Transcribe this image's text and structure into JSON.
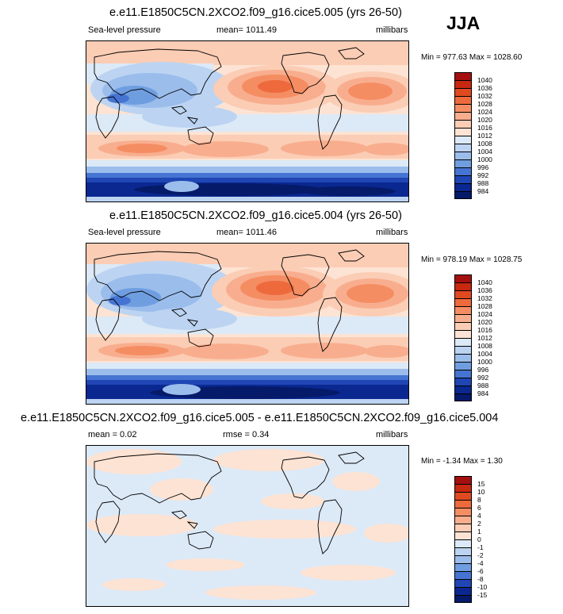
{
  "season": "JJA",
  "chart_data": [
    {
      "type": "heatmap",
      "title": "e.e11.E1850C5CN.2XCO2.f09_g16.cice5.005 (yrs 26-50)",
      "left_label": "Sea-level pressure",
      "center_label": "mean= 1011.49",
      "units": "millibars",
      "min_max": "Min = 977.63 Max = 1028.60",
      "levels": [
        "1040",
        "1036",
        "1032",
        "1028",
        "1024",
        "1020",
        "1016",
        "1012",
        "1008",
        "1004",
        "1000",
        "996",
        "992",
        "988",
        "984"
      ],
      "colors": [
        "#a50f0f",
        "#c8280f",
        "#e04a20",
        "#ee6a3c",
        "#f58d63",
        "#f8ae8e",
        "#fbcdb5",
        "#fde3d3",
        "#dce9f7",
        "#bcd4f2",
        "#9bbdec",
        "#6f9ee0",
        "#4674d2",
        "#1f46b4",
        "#0a2890",
        "#061a6a"
      ],
      "mean": 1011.49,
      "min": 977.63,
      "max": 1028.6
    },
    {
      "type": "heatmap",
      "title": "e.e11.E1850C5CN.2XCO2.f09_g16.cice5.004 (yrs 26-50)",
      "left_label": "Sea-level pressure",
      "center_label": "mean= 1011.46",
      "units": "millibars",
      "min_max": "Min = 978.19 Max = 1028.75",
      "levels": [
        "1040",
        "1036",
        "1032",
        "1028",
        "1024",
        "1020",
        "1016",
        "1012",
        "1008",
        "1004",
        "1000",
        "996",
        "992",
        "988",
        "984"
      ],
      "colors": [
        "#a50f0f",
        "#c8280f",
        "#e04a20",
        "#ee6a3c",
        "#f58d63",
        "#f8ae8e",
        "#fbcdb5",
        "#fde3d3",
        "#dce9f7",
        "#bcd4f2",
        "#9bbdec",
        "#6f9ee0",
        "#4674d2",
        "#1f46b4",
        "#0a2890",
        "#061a6a"
      ],
      "mean": 1011.46,
      "min": 978.19,
      "max": 1028.75
    },
    {
      "type": "heatmap",
      "title": "e.e11.E1850C5CN.2XCO2.f09_g16.cice5.005 - e.e11.E1850C5CN.2XCO2.f09_g16.cice5.004",
      "left_label": "mean =  0.02",
      "center_label": "rmse =  0.34",
      "units": "millibars",
      "min_max": "Min =  -1.34 Max =   1.30",
      "levels": [
        "15",
        "10",
        "8",
        "6",
        "4",
        "2",
        "1",
        "0",
        "-1",
        "-2",
        "-4",
        "-6",
        "-8",
        "-10",
        "-15"
      ],
      "colors": [
        "#a50f0f",
        "#c8280f",
        "#e04a20",
        "#ee6a3c",
        "#f58d63",
        "#f8ae8e",
        "#fbcdb5",
        "#fde3d3",
        "#dce9f7",
        "#bcd4f2",
        "#9bbdec",
        "#6f9ee0",
        "#4674d2",
        "#1f46b4",
        "#0a2890",
        "#061a6a"
      ],
      "mean": 0.02,
      "rmse": 0.34,
      "min": -1.34,
      "max": 1.3
    }
  ]
}
